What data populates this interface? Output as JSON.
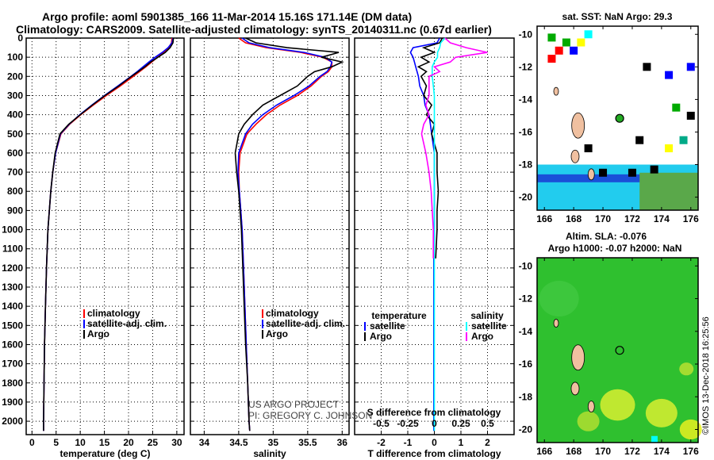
{
  "title_line1": "Argo profile: aoml 5901385_166 11-Mar-2014 15.16S 171.14E (DM data)",
  "title_line2": "Climatology: CARS2009. Satellite-adjusted climatology: synTS_20140311.nc (0.67d earlier)",
  "credit1": "US ARGO PROJECT",
  "credit2": "PI: GREGORY C. JOHNSON",
  "watermark": "©IMOS 13-Dec-2018 16:25:56",
  "colors": {
    "climatology": "#ff0000",
    "satellite": "#0000ff",
    "argo": "#000000",
    "sal_sat": "#00ffff",
    "sal_argo": "#ff00ff"
  },
  "chart_data": [
    {
      "type": "line",
      "title": "",
      "xlabel": "temperature (deg C)",
      "ylabel": "",
      "xlim": [
        -1.2,
        31.5
      ],
      "ylim": [
        2070,
        0
      ],
      "xticks": [
        "0",
        "5",
        "10",
        "15",
        "20",
        "25",
        "30"
      ],
      "yticks": [
        "0",
        "100",
        "200",
        "300",
        "400",
        "500",
        "600",
        "700",
        "800",
        "900",
        "1000",
        "1100",
        "1200",
        "1300",
        "1400",
        "1500",
        "1600",
        "1700",
        "1800",
        "1900",
        "2000"
      ],
      "depth": [
        0,
        25,
        50,
        75,
        100,
        125,
        150,
        175,
        200,
        250,
        300,
        350,
        400,
        450,
        500,
        600,
        700,
        800,
        900,
        1000,
        1200,
        1400,
        1600,
        1800,
        2000,
        2050
      ],
      "legend": [
        "climatology",
        "satellite-adj. clim.",
        "Argo"
      ],
      "series": [
        {
          "name": "climatology",
          "values": [
            29.0,
            28.9,
            28.3,
            27.3,
            26.0,
            24.8,
            23.6,
            22.3,
            21.0,
            18.3,
            15.4,
            12.7,
            10.1,
            7.8,
            6.0,
            4.9,
            4.3,
            3.9,
            3.6,
            3.3,
            3.0,
            2.8,
            2.6,
            2.5,
            2.4,
            2.4
          ]
        },
        {
          "name": "satellite-adj. clim.",
          "values": [
            29.2,
            29.0,
            28.2,
            27.0,
            25.5,
            24.2,
            23.0,
            21.8,
            20.5,
            17.8,
            15.0,
            12.4,
            9.9,
            7.7,
            5.9,
            4.9,
            4.3,
            3.9,
            3.6,
            3.3,
            3.0,
            2.8,
            2.6,
            2.5,
            2.4,
            2.4
          ]
        },
        {
          "name": "Argo",
          "values": [
            29.3,
            29.2,
            28.6,
            27.6,
            26.1,
            24.6,
            23.4,
            22.0,
            20.6,
            18.0,
            15.1,
            12.5,
            10.0,
            7.6,
            5.8,
            4.8,
            4.3,
            3.9,
            3.6,
            3.3,
            3.0,
            2.8,
            2.6,
            2.5,
            2.4,
            2.4
          ]
        }
      ]
    },
    {
      "type": "line",
      "xlabel": "salinity",
      "xlim": [
        33.8,
        36.1
      ],
      "ylim": [
        2070,
        0
      ],
      "xticks": [
        "34",
        "34.5",
        "35",
        "35.5",
        "36"
      ],
      "legend": [
        "climatology",
        "satellite-adj. clim.",
        "Argo"
      ],
      "series": [
        {
          "name": "climatology",
          "values": [
            34.5,
            34.6,
            34.9,
            35.4,
            35.72,
            35.85,
            35.85,
            35.8,
            35.7,
            35.55,
            35.35,
            35.1,
            34.9,
            34.75,
            34.62,
            34.52,
            34.5,
            34.51,
            34.53,
            34.55,
            34.57,
            34.59,
            34.61,
            34.63,
            34.65,
            34.66
          ]
        },
        {
          "name": "satellite-adj. clim.",
          "values": [
            34.55,
            34.65,
            34.95,
            35.45,
            35.75,
            35.85,
            35.83,
            35.78,
            35.68,
            35.52,
            35.3,
            35.05,
            34.85,
            34.7,
            34.6,
            34.5,
            34.49,
            34.51,
            34.53,
            34.55,
            34.57,
            34.59,
            34.61,
            34.63,
            34.65,
            34.66
          ]
        },
        {
          "name": "Argo",
          "values": [
            34.6,
            34.75,
            35.2,
            35.95,
            35.7,
            36.0,
            35.85,
            35.6,
            35.5,
            35.35,
            35.1,
            34.85,
            34.7,
            34.58,
            34.5,
            34.45,
            34.47,
            34.5,
            34.52,
            34.54,
            34.56,
            34.58,
            34.6,
            34.63,
            34.65,
            34.66
          ]
        }
      ]
    },
    {
      "type": "line",
      "xlabel": "T difference from climatology",
      "x2label": "S difference from climatology",
      "xlim": [
        -3,
        3
      ],
      "x2lim": [
        -0.75,
        0.75
      ],
      "ylim": [
        2070,
        0
      ],
      "xticks": [
        "-2",
        "-1",
        "0",
        "1",
        "2"
      ],
      "x2ticks": [
        "-0.5",
        "-0.25",
        "0",
        "0.25",
        "0.5"
      ],
      "legend_t": {
        "title": "temperature",
        "items": [
          "satellite",
          "Argo"
        ]
      },
      "legend_s": {
        "title": "salinity",
        "items": [
          "satellite",
          "Argo"
        ]
      },
      "depth": [
        0,
        25,
        50,
        75,
        100,
        125,
        150,
        175,
        200,
        250,
        300,
        350,
        400,
        450,
        500,
        600,
        700,
        800,
        900,
        1000,
        1150,
        1400,
        1600,
        1800,
        2000,
        2050
      ],
      "series": [
        {
          "name": "temperature satellite",
          "values": [
            0.2,
            0.1,
            -0.8,
            -0.9,
            -0.8,
            -0.75,
            -0.7,
            -0.65,
            -0.6,
            -0.55,
            -0.4,
            -0.35,
            -0.2,
            -0.15,
            -0.1,
            0,
            0,
            0,
            0,
            0,
            -0.02,
            -0.02,
            -0.02,
            -0.02,
            -0.02,
            -0.02
          ]
        },
        {
          "name": "temperature Argo",
          "values": [
            0.3,
            0.2,
            -0.4,
            0.0,
            -0.5,
            -0.2,
            -0.6,
            -0.3,
            -0.5,
            -0.3,
            -0.4,
            -0.1,
            -0.3,
            0.0,
            -0.1,
            0.1,
            0.1,
            0.15,
            0.1,
            0.1,
            0.05,
            null,
            null,
            null,
            null,
            null
          ]
        },
        {
          "name": "salinity satellite",
          "values": [
            0.1,
            0.06,
            0.05,
            0.03,
            0.03,
            0.0,
            -0.02,
            -0.02,
            -0.02,
            -0.01,
            0,
            0,
            0,
            0,
            0,
            0,
            0,
            0,
            0,
            0,
            0,
            0,
            0,
            0,
            0,
            0
          ]
        },
        {
          "name": "salinity Argo",
          "values": [
            0.1,
            0.15,
            0.3,
            0.5,
            0.2,
            0.15,
            0.0,
            0.05,
            -0.05,
            -0.05,
            -0.05,
            -0.08,
            -0.05,
            -0.1,
            -0.12,
            -0.08,
            -0.05,
            -0.03,
            -0.02,
            -0.01,
            -0.01,
            null,
            null,
            null,
            null,
            null
          ]
        }
      ]
    },
    {
      "type": "heatmap",
      "title": "sat. SST: NaN Argo: 29.3",
      "xlim": [
        165.5,
        176.5
      ],
      "ylim": [
        -20.8,
        -9.5
      ],
      "xticks": [
        "166",
        "168",
        "170",
        "172",
        "174",
        "176"
      ],
      "yticks": [
        "-10",
        "-12",
        "-14",
        "-16",
        "-18",
        "-20"
      ],
      "argo_position": [
        171.14,
        -15.16
      ],
      "cells": [
        [
          167,
          -11,
          "#ff0000"
        ],
        [
          166.5,
          -11.5,
          "#ff0000"
        ],
        [
          167.5,
          -10.5,
          "#00aa00"
        ],
        [
          168,
          -11,
          "#0000ff"
        ],
        [
          168.5,
          -10.5,
          "#ffff00"
        ],
        [
          169,
          -10,
          "#00ffff"
        ],
        [
          166.5,
          -10.2,
          "#00aa00"
        ],
        [
          173,
          -12,
          "#000000"
        ],
        [
          174.5,
          -12.5,
          "#0000ff"
        ],
        [
          176,
          -12,
          "#0000ff"
        ],
        [
          175,
          -14.5,
          "#00aa00"
        ],
        [
          176,
          -15,
          "#000000"
        ],
        [
          172.5,
          -16.5,
          "#000000"
        ],
        [
          174.5,
          -17,
          "#ffff00"
        ],
        [
          175.5,
          -16.5,
          "#00aa88"
        ],
        [
          169,
          -17,
          "#000000"
        ],
        [
          170,
          -18.5,
          "#000000"
        ],
        [
          172,
          -18.5,
          "#000000"
        ],
        [
          173.5,
          -18.3,
          "#000000"
        ]
      ]
    },
    {
      "type": "heatmap",
      "title": "Altim. SLA: -0.076",
      "subtitle": "Argo h1000: -0.07 h2000: NaN",
      "xlim": [
        165.5,
        176.5
      ],
      "ylim": [
        -20.8,
        -9.5
      ],
      "xticks": [
        "166",
        "168",
        "170",
        "172",
        "174",
        "176"
      ],
      "yticks": [
        "-10",
        "-12",
        "-14",
        "-16",
        "-18",
        "-20"
      ],
      "argo_position": [
        171.14,
        -15.16
      ]
    }
  ]
}
